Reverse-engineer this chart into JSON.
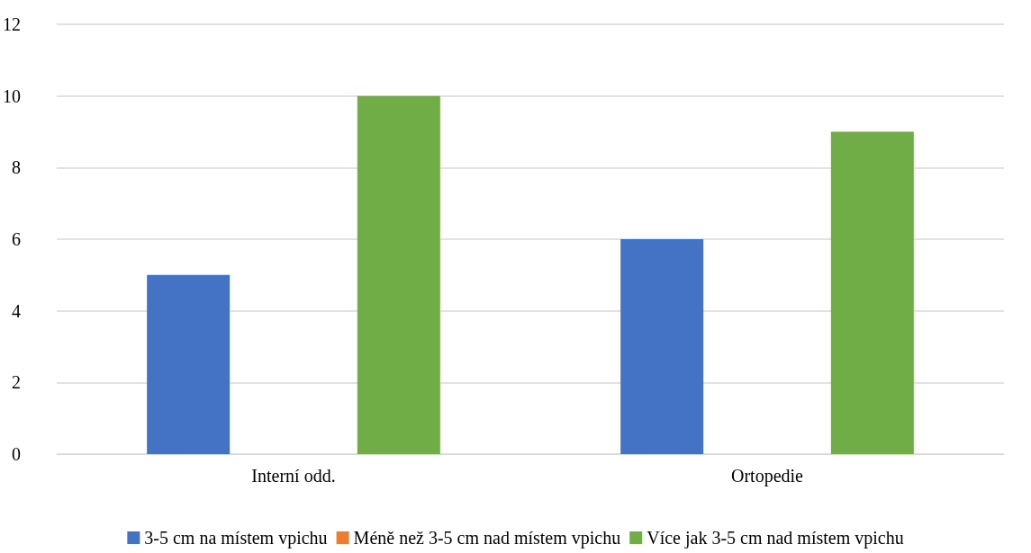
{
  "chart_data": {
    "type": "bar",
    "categories": [
      "Interní odd.",
      "Ortopedie"
    ],
    "series": [
      {
        "name": "3-5 cm na místem vpichu",
        "color": "#4472c4",
        "values": [
          5,
          6
        ]
      },
      {
        "name": "Méně než 3-5 cm nad místem vpichu",
        "color": "#ed7d31",
        "values": [
          0,
          0
        ]
      },
      {
        "name": "Více jak 3-5 cm nad místem vpichu",
        "color": "#70ad47",
        "values": [
          10,
          9
        ]
      }
    ],
    "ylim": [
      0,
      12
    ],
    "yticks": [
      0,
      2,
      4,
      6,
      8,
      10,
      12
    ],
    "grid": "y",
    "legend": "bottom"
  }
}
